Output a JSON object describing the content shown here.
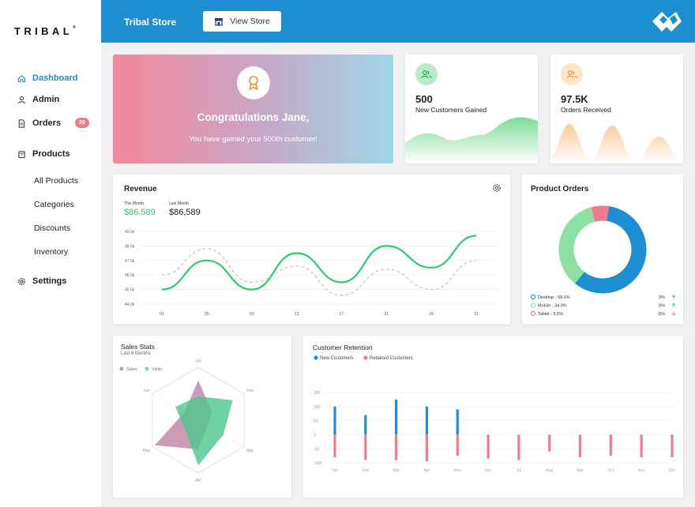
{
  "brand": {
    "logo_text": "TRIBAL"
  },
  "sidebar": {
    "dashboard": "Dashboard",
    "admin": "Admin",
    "orders": "Orders",
    "orders_badge": "20",
    "products": "Products",
    "sub": [
      "All Products",
      "Categories",
      "Discounts",
      "Inventory"
    ],
    "settings": "Settings"
  },
  "header": {
    "title": "Tribal Store",
    "view_store": "View Store"
  },
  "congrats": {
    "title": "Congratulations Jane,",
    "message": "You have gained your 500th customer!"
  },
  "stats": {
    "customers": {
      "value": "500",
      "label": "New Customers Gained"
    },
    "orders": {
      "value": "97.5K",
      "label": "Orders Received"
    }
  },
  "revenue": {
    "title": "Revenue",
    "this_month_label": "This Month",
    "this_month_value": "$86,589",
    "last_month_label": "Last Month",
    "last_month_value": "$86,589"
  },
  "product_orders": {
    "title": "Product Orders",
    "items": [
      {
        "label": "Desktop - 58.6%",
        "change": "3%",
        "dir": "up"
      },
      {
        "label": "Mobile - 34.9%",
        "change": "8%",
        "dir": "up"
      },
      {
        "label": "Tablet - 6.5%",
        "change": "-5%",
        "dir": "down"
      }
    ]
  },
  "sales_stats": {
    "title": "Sales Stats",
    "subtitle": "Last 6 Months",
    "legend": [
      "Sales",
      "Visits"
    ]
  },
  "retention": {
    "title": "Customer Retention",
    "legend": [
      "New Customers",
      "Retained Customers"
    ]
  },
  "colors": {
    "accent": "#1d8ed1",
    "green": "#2ecc71",
    "pink": "#f07b8d",
    "orange": "#f0a04b"
  },
  "chart_data": [
    {
      "type": "line",
      "title": "Revenue",
      "x": [
        "01",
        "05",
        "09",
        "13",
        "17",
        "21",
        "26",
        "31"
      ],
      "ylim": [
        44,
        49
      ],
      "yticks": [
        "49.0k",
        "48.0k",
        "47.0k",
        "46.0k",
        "45.0k",
        "44.0k"
      ],
      "series": [
        {
          "name": "This Month",
          "values": [
            45.0,
            47.0,
            45.0,
            47.5,
            45.5,
            48.0,
            46.5,
            48.7
          ]
        },
        {
          "name": "Last Month",
          "values": [
            46.0,
            47.8,
            45.5,
            46.6,
            44.6,
            46.4,
            45.0,
            47.0
          ]
        }
      ],
      "grid": true
    },
    {
      "type": "pie",
      "title": "Product Orders",
      "categories": [
        "Desktop",
        "Mobile",
        "Tablet"
      ],
      "values": [
        58.6,
        34.9,
        6.5
      ],
      "colors": [
        "#1d8ed1",
        "#8de0a4",
        "#f07b8d"
      ]
    },
    {
      "type": "radar",
      "title": "Sales Stats",
      "categories": [
        "Jan",
        "Feb",
        "Mar",
        "Apr",
        "May",
        "Jun"
      ],
      "series": [
        {
          "name": "Sales",
          "values": [
            0.75,
            0.3,
            0.2,
            0.55,
            0.95,
            0.3
          ]
        },
        {
          "name": "Visits",
          "values": [
            0.45,
            0.75,
            0.55,
            0.85,
            0.3,
            0.5
          ]
        }
      ]
    },
    {
      "type": "bar",
      "title": "Customer Retention",
      "categories": [
        "Jan",
        "Feb",
        "Mar",
        "Apr",
        "May",
        "Jun",
        "Jul",
        "Aug",
        "Sep",
        "Oct",
        "Nov",
        "Dec"
      ],
      "yticks": [
        "150",
        "100",
        "50",
        "0",
        "-50",
        "-100"
      ],
      "ylim": [
        -125,
        175
      ],
      "series": [
        {
          "name": "New Customers",
          "values": [
            100,
            70,
            125,
            100,
            90,
            0,
            0,
            0,
            0,
            0,
            0,
            0
          ]
        },
        {
          "name": "Retained Customers",
          "values": [
            -80,
            -90,
            -90,
            -95,
            -75,
            -85,
            -90,
            -60,
            -80,
            -75,
            -80,
            -80
          ]
        }
      ],
      "grid": true
    }
  ]
}
